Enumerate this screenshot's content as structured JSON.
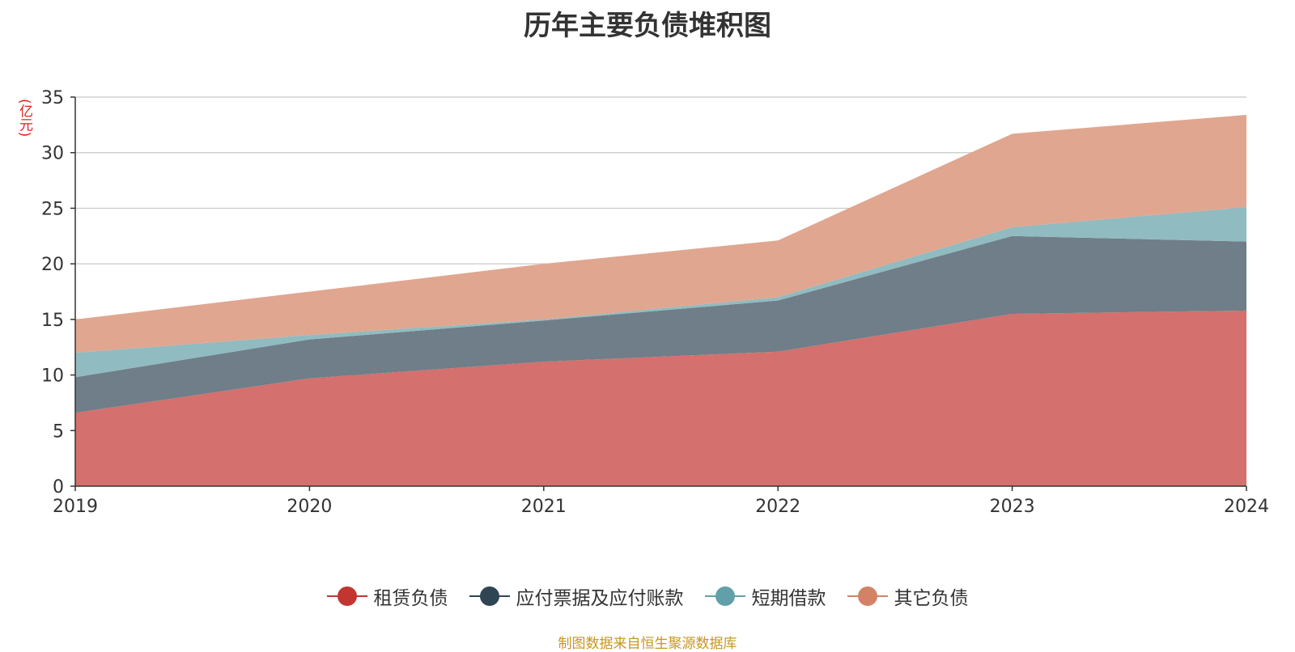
{
  "chart_data": {
    "type": "area",
    "stacked": true,
    "title": "历年主要负债堆积图",
    "ylabel": "(亿元)",
    "xlabel": "",
    "x": [
      "2019",
      "2020",
      "2021",
      "2022",
      "2023",
      "2024"
    ],
    "ylim": [
      0,
      35
    ],
    "yticks": [
      0,
      5,
      10,
      15,
      20,
      25,
      30,
      35
    ],
    "grid": true,
    "legend_position": "bottom",
    "series": [
      {
        "name": "租赁负债",
        "values": [
          6.6,
          9.7,
          11.2,
          12.1,
          15.5,
          15.8
        ],
        "color": "#c23531",
        "fill": "#d4706d"
      },
      {
        "name": "应付票据及应付账款",
        "values": [
          3.2,
          3.5,
          3.7,
          4.6,
          7.0,
          6.2
        ],
        "color": "#2f4554",
        "fill": "#6f7e88"
      },
      {
        "name": "短期借款",
        "values": [
          2.2,
          0.4,
          0.1,
          0.3,
          0.8,
          3.1
        ],
        "color": "#61a0a8",
        "fill": "#90bbc0"
      },
      {
        "name": "其它负债",
        "values": [
          3.0,
          3.9,
          5.0,
          5.1,
          8.4,
          8.3
        ],
        "color": "#d48265",
        "fill": "#e0a68f"
      }
    ]
  },
  "source_note": "制图数据来自恒生聚源数据库"
}
